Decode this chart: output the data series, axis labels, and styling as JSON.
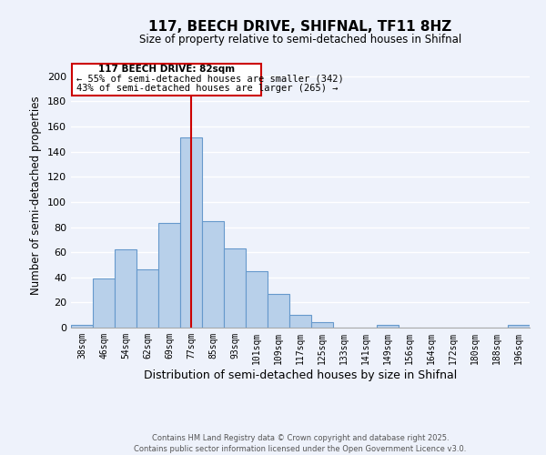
{
  "title": "117, BEECH DRIVE, SHIFNAL, TF11 8HZ",
  "subtitle": "Size of property relative to semi-detached houses in Shifnal",
  "xlabel": "Distribution of semi-detached houses by size in Shifnal",
  "ylabel": "Number of semi-detached properties",
  "bar_labels": [
    "38sqm",
    "46sqm",
    "54sqm",
    "62sqm",
    "69sqm",
    "77sqm",
    "85sqm",
    "93sqm",
    "101sqm",
    "109sqm",
    "117sqm",
    "125sqm",
    "133sqm",
    "141sqm",
    "149sqm",
    "156sqm",
    "164sqm",
    "172sqm",
    "180sqm",
    "188sqm",
    "196sqm"
  ],
  "bar_values": [
    2,
    39,
    62,
    46,
    83,
    151,
    85,
    63,
    45,
    27,
    10,
    4,
    0,
    0,
    2,
    0,
    0,
    0,
    0,
    0,
    2
  ],
  "bar_color": "#b8d0ea",
  "bar_edgecolor": "#6699cc",
  "vline_bar_index": 5,
  "vline_color": "#cc0000",
  "annotation_title": "117 BEECH DRIVE: 82sqm",
  "annotation_line1": "← 55% of semi-detached houses are smaller (342)",
  "annotation_line2": "43% of semi-detached houses are larger (265) →",
  "annotation_box_color": "#cc0000",
  "ylim": [
    0,
    210
  ],
  "yticks": [
    0,
    20,
    40,
    60,
    80,
    100,
    120,
    140,
    160,
    180,
    200
  ],
  "background_color": "#eef2fb",
  "grid_color": "#ffffff",
  "footer1": "Contains HM Land Registry data © Crown copyright and database right 2025.",
  "footer2": "Contains public sector information licensed under the Open Government Licence v3.0."
}
